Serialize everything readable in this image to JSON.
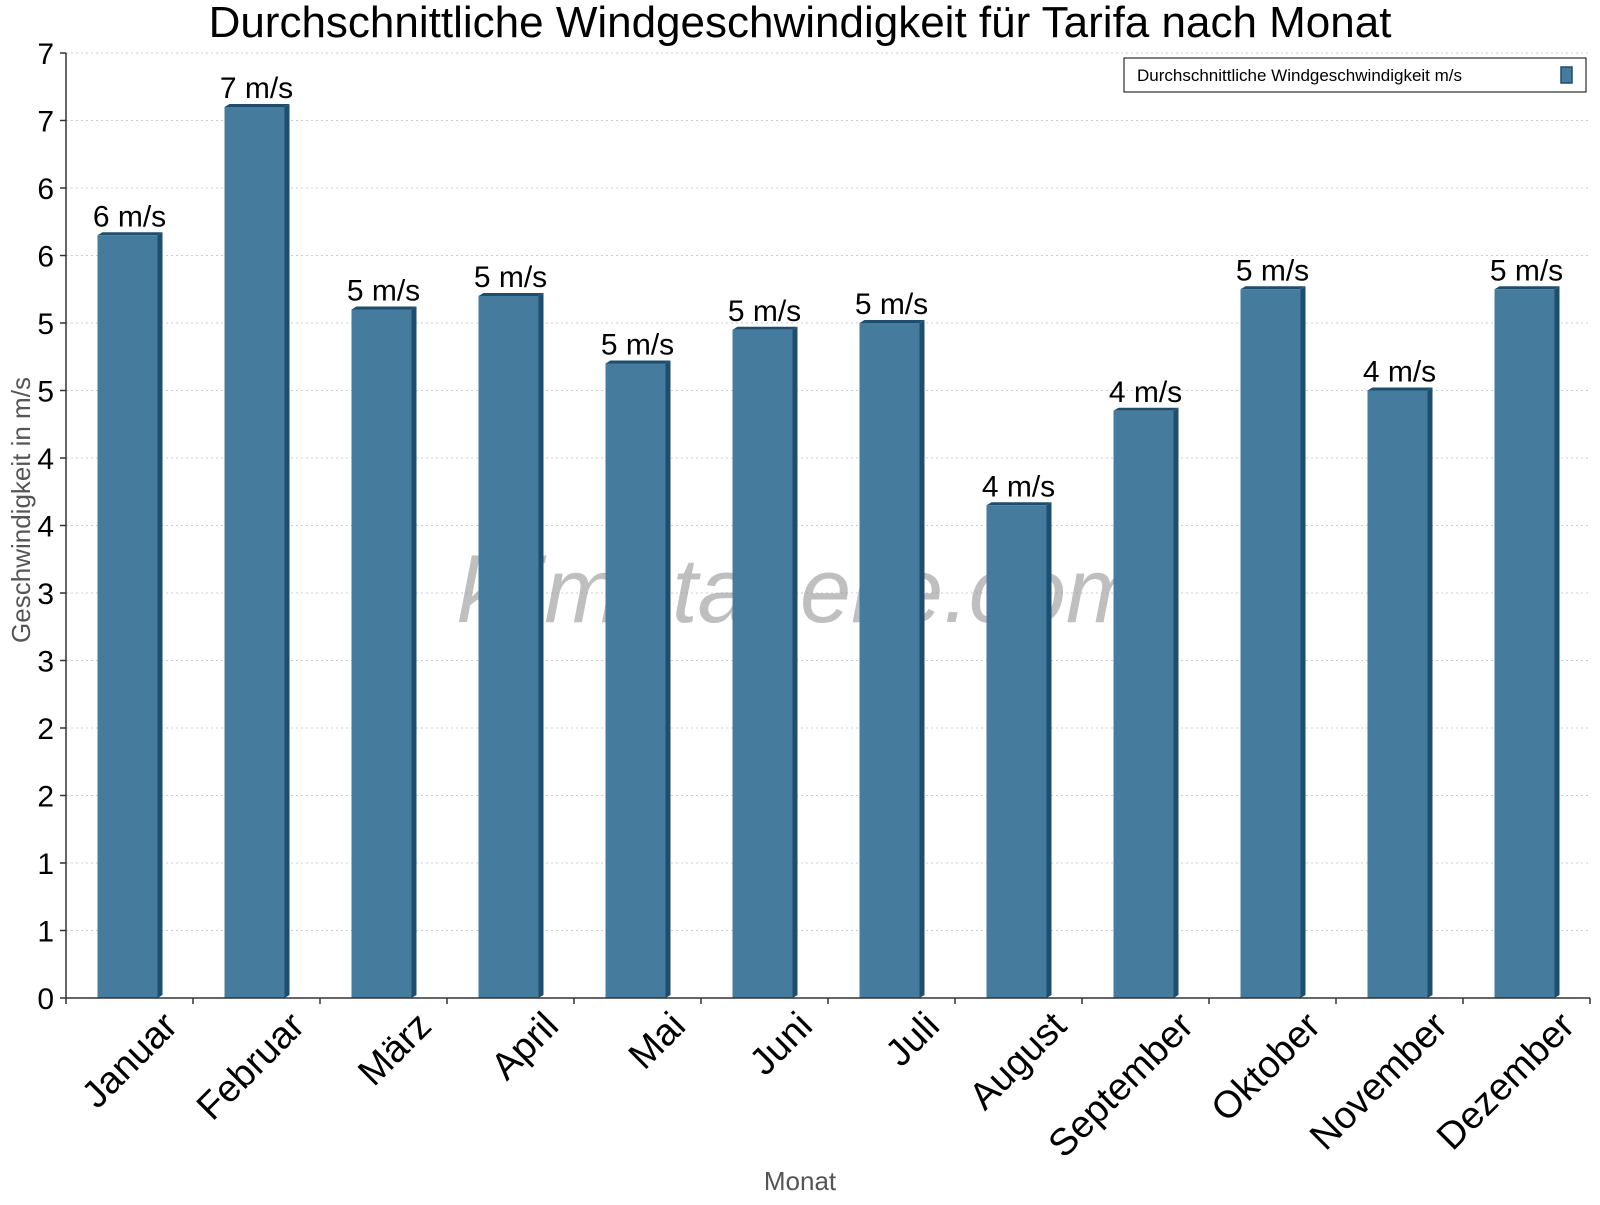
{
  "chart_data": {
    "type": "bar",
    "title": "Durchschnittliche Windgeschwindigkeit für Tarifa nach Monat",
    "xlabel": "Monat",
    "ylabel": "Geschwindigkeit in m/s",
    "categories": [
      "Januar",
      "Februar",
      "März",
      "April",
      "Mai",
      "Juni",
      "Juli",
      "August",
      "September",
      "Oktober",
      "November",
      "Dezember"
    ],
    "series": [
      {
        "name": "Durchschnittliche Windgeschwindigkeit m/s",
        "values": [
          5.65,
          6.6,
          5.1,
          5.2,
          4.7,
          4.95,
          5.0,
          3.65,
          4.35,
          5.25,
          4.5,
          5.25
        ],
        "labels": [
          "6 m/s",
          "7 m/s",
          "5 m/s",
          "5 m/s",
          "5 m/s",
          "5 m/s",
          "5 m/s",
          "4 m/s",
          "4 m/s",
          "5 m/s",
          "4 m/s",
          "5 m/s"
        ]
      }
    ],
    "ylim": [
      0,
      7
    ],
    "yticks": [
      0,
      0.5,
      1,
      1.5,
      2,
      2.5,
      3,
      3.5,
      4,
      4.5,
      5,
      5.5,
      6,
      6.5,
      7
    ],
    "ytick_labels": [
      "0",
      "1",
      "1",
      "2",
      "2",
      "3",
      "3",
      "4",
      "4",
      "5",
      "5",
      "6",
      "6",
      "7",
      "7"
    ],
    "grid": true,
    "legend_position": "top-right",
    "colors": {
      "bar": "#457b9d",
      "bar_side": "#1d4e6e",
      "grid": "#cccccc",
      "axis": "#333333"
    },
    "watermark": "klimatabelle.com"
  }
}
